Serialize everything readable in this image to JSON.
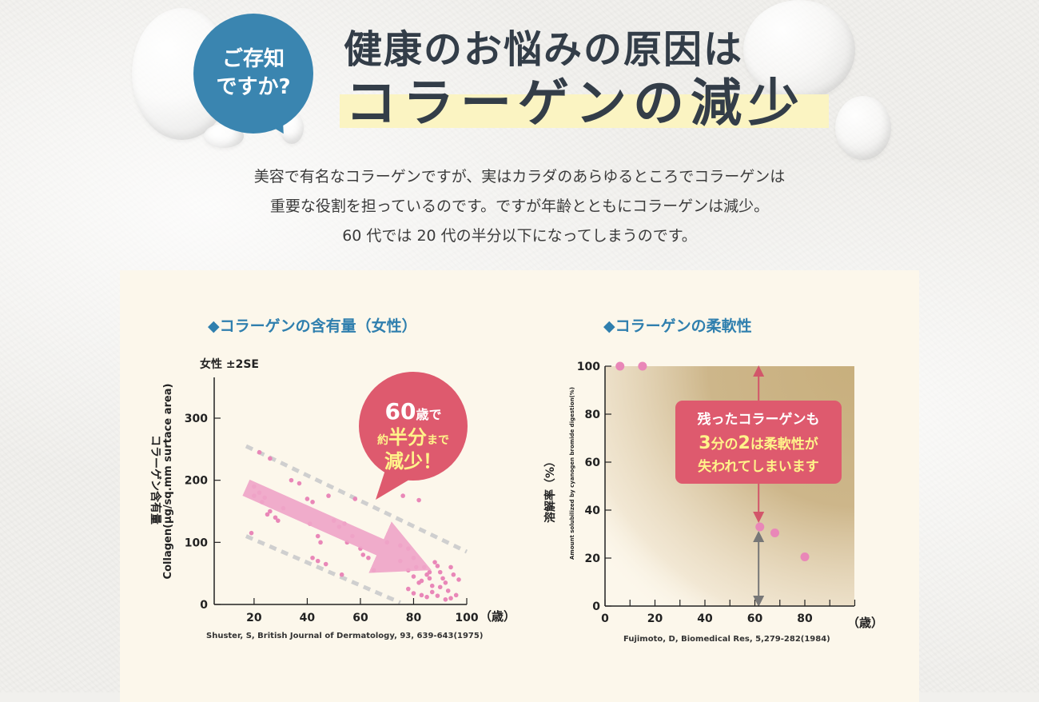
{
  "badge": {
    "text": "ご存知\nですか?"
  },
  "headline": {
    "line1": "健康のお悩みの原因は",
    "line2": "コラーゲンの減少"
  },
  "intro": [
    "美容で有名なコラーゲンですが、実はカラダのあらゆるところでコラーゲンは",
    "重要な役割を担っているのです。ですが年齢とともにコラーゲンは減少。",
    "60 代では 20 代の半分以下になってしまうのです。"
  ],
  "chart_data": [
    {
      "type": "scatter",
      "title": "◆コラーゲンの含有量（女性）",
      "subtitle": "女性 ±2SE",
      "ylabel": "コラーゲン含有量",
      "ylabel2": "Collagen(µg/sq.mm surtace area)",
      "x_ticks": [
        "20",
        "40",
        "60",
        "80",
        "100"
      ],
      "y_ticks": [
        "0",
        "100",
        "200",
        "300"
      ],
      "x_unit": "（歳）",
      "xlim": [
        5,
        100
      ],
      "ylim": [
        0,
        300
      ],
      "source": "Shuster, S, British Journal of Dermatology, 93, 639-643(1975)",
      "callout": {
        "l1a": "60",
        "l1b": "歳で",
        "l2a": "約",
        "l2b": "半分",
        "l2c": "まで",
        "l3": "減少！"
      },
      "colors": {
        "point": "#e987b8",
        "trend": "#f0a6c9",
        "band": "#cfcfcf",
        "callout": "#de5a6e",
        "callout_text": "#fff48a"
      },
      "points": [
        [
          22,
          245
        ],
        [
          26,
          235
        ],
        [
          20,
          190
        ],
        [
          22,
          180
        ],
        [
          24,
          172
        ],
        [
          20,
          175
        ],
        [
          23,
          165
        ],
        [
          26,
          150
        ],
        [
          28,
          140
        ],
        [
          29,
          135
        ],
        [
          25,
          145
        ],
        [
          31,
          155
        ],
        [
          34,
          200
        ],
        [
          37,
          195
        ],
        [
          40,
          170
        ],
        [
          42,
          165
        ],
        [
          41,
          130
        ],
        [
          44,
          110
        ],
        [
          45,
          100
        ],
        [
          48,
          175
        ],
        [
          42,
          75
        ],
        [
          44,
          70
        ],
        [
          47,
          65
        ],
        [
          50,
          135
        ],
        [
          52,
          125
        ],
        [
          54,
          130
        ],
        [
          55,
          100
        ],
        [
          57,
          110
        ],
        [
          58,
          170
        ],
        [
          53,
          48
        ],
        [
          60,
          90
        ],
        [
          61,
          80
        ],
        [
          63,
          75
        ],
        [
          65,
          55
        ],
        [
          70,
          100
        ],
        [
          75,
          95
        ],
        [
          78,
          90
        ],
        [
          80,
          75
        ],
        [
          76,
          175
        ],
        [
          82,
          168
        ],
        [
          75,
          70
        ],
        [
          78,
          55
        ],
        [
          80,
          45
        ],
        [
          82,
          35
        ],
        [
          84,
          60
        ],
        [
          85,
          48
        ],
        [
          86,
          42
        ],
        [
          87,
          30
        ],
        [
          88,
          68
        ],
        [
          89,
          62
        ],
        [
          90,
          52
        ],
        [
          91,
          42
        ],
        [
          92,
          35
        ],
        [
          93,
          22
        ],
        [
          94,
          60
        ],
        [
          95,
          48
        ],
        [
          78,
          25
        ],
        [
          80,
          18
        ],
        [
          83,
          15
        ],
        [
          85,
          12
        ],
        [
          87,
          20
        ],
        [
          89,
          14
        ],
        [
          90,
          28
        ],
        [
          92,
          8
        ],
        [
          94,
          10
        ],
        [
          96,
          15
        ],
        [
          97,
          40
        ],
        [
          83,
          38
        ],
        [
          86,
          52
        ],
        [
          81,
          60
        ],
        [
          19,
          115
        ]
      ]
    },
    {
      "type": "scatter",
      "title": "◆コラーゲンの柔軟性",
      "ylabel": "溶解率（%）",
      "ylabel2": "Amount solubilized by cyanogen bromide digestion(%)",
      "x_ticks": [
        "0",
        "20",
        "40",
        "60",
        "80"
      ],
      "y_ticks": [
        "0",
        "20",
        "40",
        "60",
        "80",
        "100"
      ],
      "x_unit": "（歳）",
      "xlim": [
        0,
        100
      ],
      "ylim": [
        0,
        100
      ],
      "source": "Fujimoto, D, Biomedical Res, 5,279-282(1984)",
      "callout": {
        "l1": "残ったコラーゲンも",
        "l2a": "3",
        "l2b": "分の",
        "l2c": "2",
        "l2d": "は柔軟性が",
        "l3": "失われてしまいます"
      },
      "colors": {
        "point": "#e987b8",
        "area": "#c8af7d",
        "callout": "#de5a6e",
        "callout_text": "#fff48a",
        "arrow_top": "#d2566a",
        "arrow_bottom": "#777777"
      },
      "points": [
        [
          6,
          100
        ],
        [
          15,
          100
        ],
        [
          62,
          33
        ],
        [
          68,
          30.5
        ],
        [
          80,
          20.5
        ]
      ]
    }
  ]
}
